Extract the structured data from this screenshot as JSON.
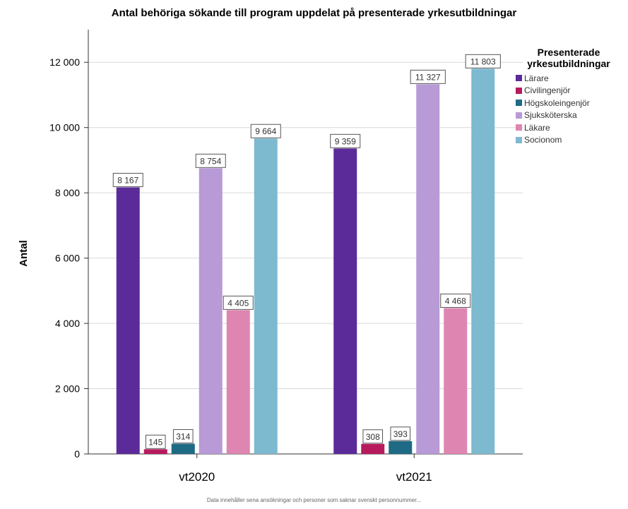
{
  "chart_data": {
    "type": "bar",
    "title": "Antal behöriga sökande till program uppdelat på presenterade yrkesutbildningar",
    "xlabel": "",
    "ylabel": "Antal",
    "ylim": [
      0,
      13000
    ],
    "yticks": [
      0,
      2000,
      4000,
      6000,
      8000,
      10000,
      12000
    ],
    "ytick_labels": [
      "0",
      "2 000",
      "4 000",
      "6 000",
      "8 000",
      "10 000",
      "12 000"
    ],
    "grid": true,
    "legend_title": "Presenterade yrkesutbildningar",
    "legend_position": "right",
    "categories": [
      "vt2020",
      "vt2021"
    ],
    "series": [
      {
        "name": "Lärare",
        "color": "#5b2b9a",
        "values": [
          8167,
          9359
        ],
        "labels": [
          "8 167",
          "9 359"
        ]
      },
      {
        "name": "Civilingenjör",
        "color": "#b81a5e",
        "values": [
          145,
          308
        ],
        "labels": [
          "145",
          "308"
        ]
      },
      {
        "name": "Högskoleingenjör",
        "color": "#1f6a85",
        "values": [
          314,
          393
        ],
        "labels": [
          "314",
          "393"
        ]
      },
      {
        "name": "Sjuksköterska",
        "color": "#b79ad6",
        "values": [
          8754,
          11327
        ],
        "labels": [
          "8 754",
          "11 327"
        ]
      },
      {
        "name": "Läkare",
        "color": "#de85b1",
        "values": [
          4405,
          4468
        ],
        "labels": [
          "4 405",
          "4 468"
        ]
      },
      {
        "name": "Socionom",
        "color": "#7db9cf",
        "values": [
          9664,
          11803
        ],
        "labels": [
          "9 664",
          "11 803"
        ]
      }
    ],
    "footnote": "Data innehåller sena ansökningar och personer som saknar svenskt personnummer..."
  }
}
